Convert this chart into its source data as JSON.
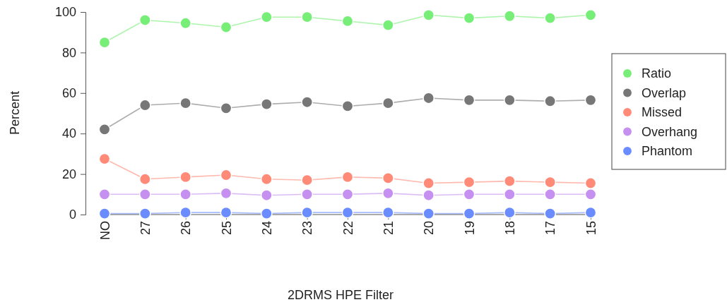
{
  "chart_data": {
    "type": "line",
    "xlabel": "2DRMS HPE Filter",
    "ylabel": "Percent",
    "categories": [
      "NO",
      "27",
      "26",
      "25",
      "24",
      "23",
      "22",
      "21",
      "20",
      "19",
      "18",
      "17",
      "15"
    ],
    "ylim": [
      0,
      100
    ],
    "yticks": [
      0,
      20,
      40,
      60,
      80,
      100
    ],
    "grid": false,
    "legend": "right",
    "marker": "circle",
    "series": [
      {
        "name": "Ratio",
        "color": "#77ee77",
        "values": [
          85,
          96,
          94.5,
          92.5,
          97.5,
          97.5,
          95.5,
          93.5,
          98.5,
          97,
          98,
          97,
          98.5
        ]
      },
      {
        "name": "Overlap",
        "color": "#777777",
        "values": [
          42,
          54,
          55,
          52.5,
          54.5,
          55.5,
          53.5,
          55,
          57.5,
          56.5,
          56.5,
          56,
          56.5
        ]
      },
      {
        "name": "Missed",
        "color": "#ff8a78",
        "values": [
          27.5,
          17.5,
          18.5,
          19.5,
          17.5,
          17,
          18.5,
          18,
          15.5,
          16,
          16.5,
          16,
          15.5
        ]
      },
      {
        "name": "Overhang",
        "color": "#c590f0",
        "values": [
          10,
          10,
          10,
          10.5,
          9.5,
          10,
          10,
          10.5,
          9.5,
          10,
          10,
          10,
          10
        ]
      },
      {
        "name": "Phantom",
        "color": "#6a8cff",
        "values": [
          0.5,
          0.5,
          1,
          1,
          0.5,
          1,
          1,
          1,
          0.5,
          0.5,
          1,
          0.5,
          1
        ]
      }
    ]
  }
}
